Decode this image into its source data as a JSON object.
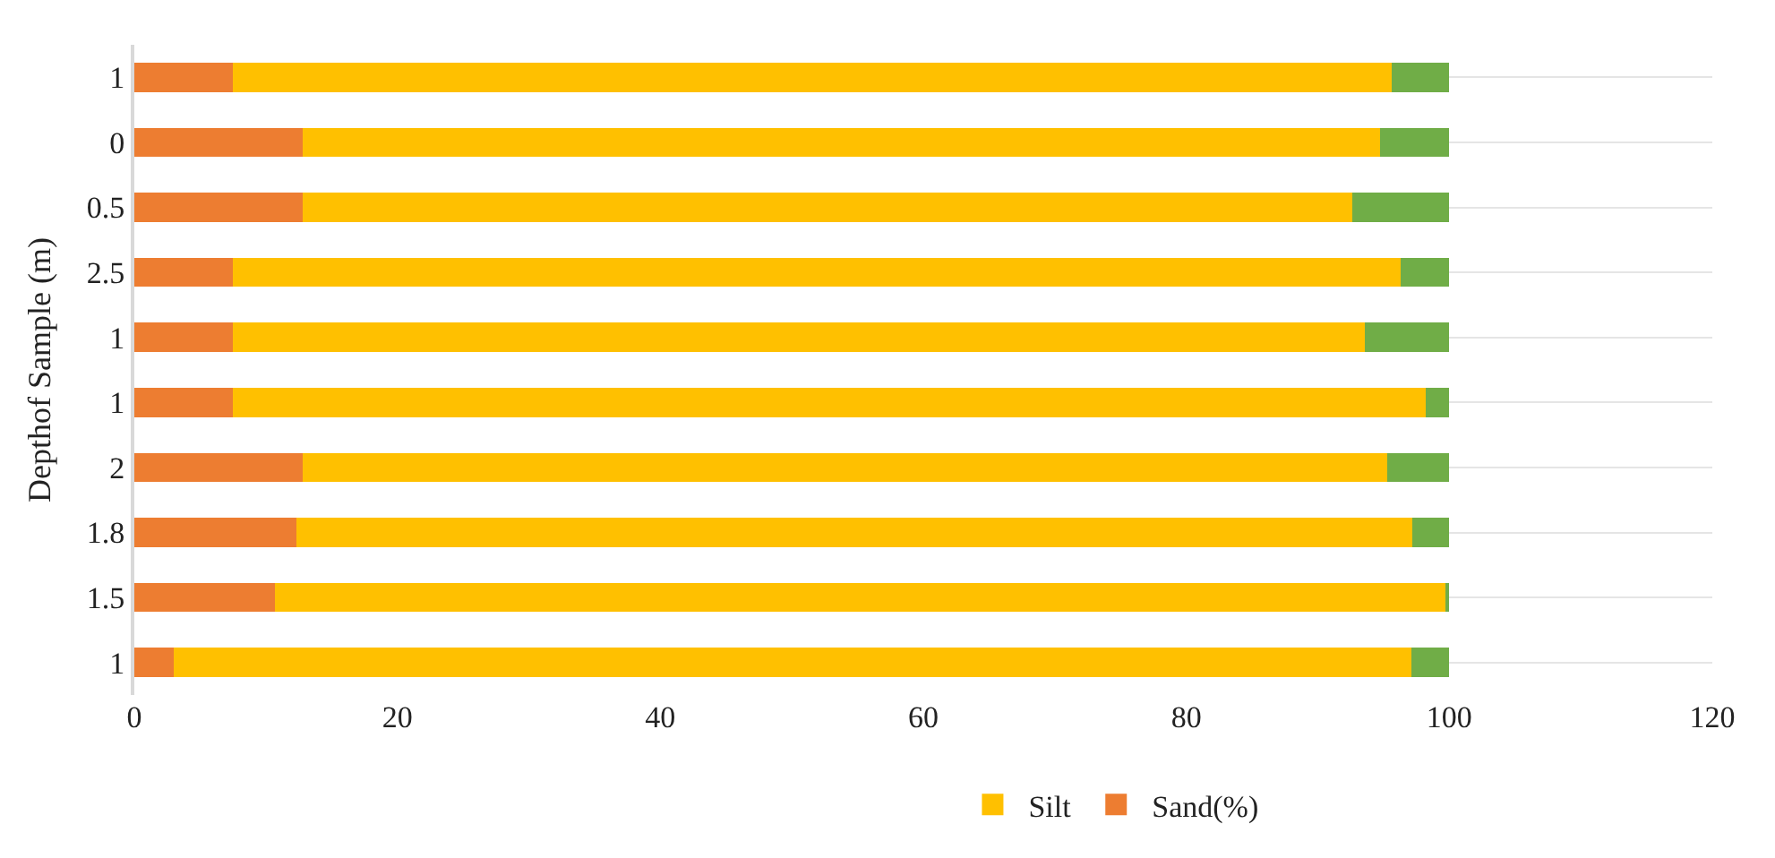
{
  "chart_data": {
    "type": "bar",
    "orientation": "horizontal",
    "stacked": true,
    "ylabel": "Depthof Sample (m)",
    "categories": [
      "1",
      "0",
      "0.5",
      "2.5",
      "1",
      "1",
      "2",
      "1.8",
      "1.5",
      "1"
    ],
    "series": [
      {
        "name": "Sand(%)",
        "color": "#ed7d31",
        "values": [
          7.5,
          12.8,
          12.8,
          7.5,
          7.5,
          7.5,
          12.8,
          12.3,
          10.7,
          3.0
        ]
      },
      {
        "name": "Silt",
        "color": "#ffc000",
        "values": [
          88.1,
          81.9,
          79.8,
          88.8,
          86.1,
          90.7,
          82.5,
          84.9,
          89.0,
          94.1
        ]
      },
      {
        "color": "#70ad47",
        "values": [
          4.4,
          5.3,
          7.4,
          3.7,
          6.4,
          1.8,
          4.7,
          2.8,
          0.3,
          2.9
        ]
      }
    ],
    "xlim": [
      0,
      120
    ],
    "xticks": [
      0,
      20,
      40,
      60,
      80,
      100,
      120
    ],
    "grid": "y",
    "legend": "bottom"
  }
}
